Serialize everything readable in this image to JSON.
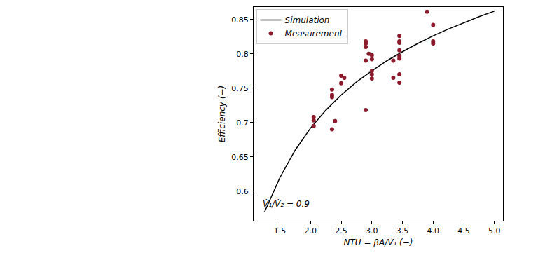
{
  "chart_data": {
    "type": "scatter",
    "x_label": "NTU = βA/V̇₁ (−)",
    "y_label": "Efficiency (−)",
    "annotation": "V̇₁/V̇₂ = 0.9",
    "legend": "upper left",
    "grid": false,
    "xlim": [
      1.07,
      5.14
    ],
    "ylim": [
      0.557,
      0.868
    ],
    "xticks": [
      {
        "value": 1.5,
        "label": "1.5"
      },
      {
        "value": 2,
        "label": "2.0"
      },
      {
        "value": 2.5,
        "label": "2.5"
      },
      {
        "value": 3,
        "label": "3.0"
      },
      {
        "value": 3.5,
        "label": "3.5"
      },
      {
        "value": 4,
        "label": "4.0"
      },
      {
        "value": 4.5,
        "label": "4.5"
      },
      {
        "value": 5,
        "label": "5.0"
      }
    ],
    "yticks": [
      0.6,
      0.65,
      0.7,
      0.75,
      0.8,
      0.85
    ],
    "series": [
      {
        "name": "Simulation",
        "type": "line",
        "line_style": "solid",
        "color": "#000000",
        "x": [
          1.25,
          1.5,
          1.75,
          2.0,
          2.25,
          2.5,
          2.75,
          3.0,
          3.25,
          3.5,
          3.75,
          4.0,
          4.25,
          4.5,
          4.75,
          5.0
        ],
        "values": [
          0.57,
          0.62,
          0.66,
          0.692,
          0.718,
          0.74,
          0.759,
          0.775,
          0.79,
          0.803,
          0.815,
          0.826,
          0.836,
          0.845,
          0.854,
          0.862
        ]
      },
      {
        "name": "Measurement",
        "type": "scatter",
        "marker": "circle",
        "color": "#8b1a2c",
        "x": [
          2.05,
          2.05,
          2.05,
          2.35,
          2.35,
          2.35,
          2.35,
          2.4,
          2.5,
          2.5,
          2.55,
          2.9,
          2.9,
          2.9,
          2.9,
          2.9,
          2.95,
          3.0,
          3.0,
          3.0,
          3.0,
          3.0,
          3.35,
          3.35,
          3.45,
          3.45,
          3.45,
          3.45,
          3.45,
          3.45,
          3.45,
          3.45,
          3.9,
          4.0,
          4.0,
          4.0
        ],
        "values": [
          0.708,
          0.703,
          0.695,
          0.748,
          0.74,
          0.737,
          0.69,
          0.702,
          0.768,
          0.757,
          0.765,
          0.818,
          0.815,
          0.81,
          0.79,
          0.718,
          0.8,
          0.798,
          0.792,
          0.775,
          0.77,
          0.764,
          0.79,
          0.765,
          0.826,
          0.818,
          0.816,
          0.805,
          0.797,
          0.793,
          0.77,
          0.758,
          0.861,
          0.842,
          0.818,
          0.815
        ]
      }
    ]
  }
}
